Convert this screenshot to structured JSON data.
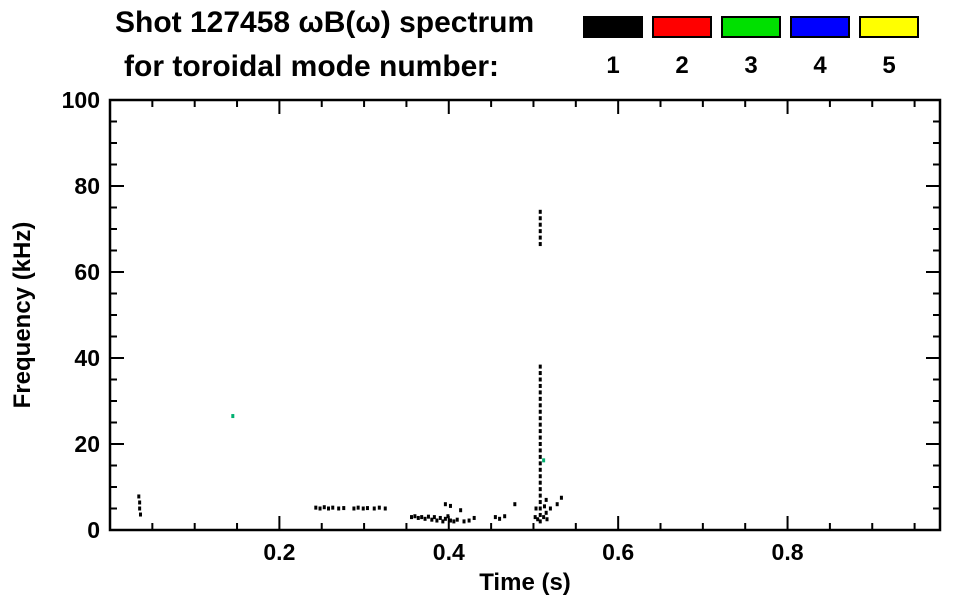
{
  "header": {
    "title": "Shot 127458 ωB(ω) spectrum",
    "subtitle": "for toroidal mode number:"
  },
  "chart_data": {
    "type": "scatter",
    "title": "Shot 127458 ωB(ω) spectrum",
    "subtitle": "for toroidal mode number:",
    "xlabel": "Time (s)",
    "ylabel": "Frequency (kHz)",
    "xlim": [
      0,
      0.98
    ],
    "ylim": [
      0,
      100
    ],
    "xticks": [
      0.2,
      0.4,
      0.6,
      0.8
    ],
    "xtick_labels": [
      "0.2",
      "0.4",
      "0.6",
      "0.8"
    ],
    "yticks": [
      0,
      20,
      40,
      60,
      80,
      100
    ],
    "ytick_labels": [
      "0",
      "20",
      "40",
      "60",
      "80",
      "100"
    ],
    "x_minor_step": 0.05,
    "y_minor_step": 5,
    "grid": false,
    "legend_position": "top-right",
    "legend": [
      {
        "label": "1",
        "color": "#000000"
      },
      {
        "label": "2",
        "color": "#ff0000"
      },
      {
        "label": "3",
        "color": "#00e000"
      },
      {
        "label": "4",
        "color": "#0000ff"
      },
      {
        "label": "5",
        "color": "#ffff00"
      }
    ],
    "series": [
      {
        "name": "n=1",
        "color": "#000000",
        "points": [
          [
            0.034,
            7.8
          ],
          [
            0.035,
            6.4
          ],
          [
            0.035,
            5.0
          ],
          [
            0.036,
            3.6
          ],
          [
            0.243,
            5.2
          ],
          [
            0.248,
            5.0
          ],
          [
            0.253,
            5.3
          ],
          [
            0.258,
            5.0
          ],
          [
            0.263,
            5.2
          ],
          [
            0.27,
            5.0
          ],
          [
            0.276,
            5.1
          ],
          [
            0.288,
            5.0
          ],
          [
            0.293,
            5.2
          ],
          [
            0.299,
            5.0
          ],
          [
            0.304,
            5.1
          ],
          [
            0.312,
            5.0
          ],
          [
            0.318,
            5.2
          ],
          [
            0.325,
            5.0
          ],
          [
            0.356,
            3.0
          ],
          [
            0.36,
            3.2
          ],
          [
            0.364,
            2.8
          ],
          [
            0.368,
            3.0
          ],
          [
            0.372,
            2.6
          ],
          [
            0.376,
            3.1
          ],
          [
            0.38,
            2.4
          ],
          [
            0.383,
            3.0
          ],
          [
            0.386,
            2.2
          ],
          [
            0.39,
            2.8
          ],
          [
            0.393,
            2.0
          ],
          [
            0.396,
            2.6
          ],
          [
            0.396,
            6.0
          ],
          [
            0.399,
            3.2
          ],
          [
            0.402,
            2.2
          ],
          [
            0.402,
            5.6
          ],
          [
            0.406,
            2.0
          ],
          [
            0.41,
            2.4
          ],
          [
            0.414,
            4.6
          ],
          [
            0.418,
            2.0
          ],
          [
            0.424,
            2.2
          ],
          [
            0.43,
            2.8
          ],
          [
            0.455,
            3.0
          ],
          [
            0.46,
            2.6
          ],
          [
            0.466,
            3.2
          ],
          [
            0.478,
            6.0
          ],
          [
            0.502,
            3.0
          ],
          [
            0.503,
            5.0
          ],
          [
            0.505,
            2.5
          ],
          [
            0.508,
            2.0
          ],
          [
            0.508,
            3.5
          ],
          [
            0.508,
            5.0
          ],
          [
            0.508,
            6.5
          ],
          [
            0.508,
            8.0
          ],
          [
            0.508,
            9.5
          ],
          [
            0.508,
            11.0
          ],
          [
            0.508,
            12.5
          ],
          [
            0.508,
            14.0
          ],
          [
            0.508,
            15.5
          ],
          [
            0.508,
            17.0
          ],
          [
            0.508,
            18.5
          ],
          [
            0.508,
            20.0
          ],
          [
            0.508,
            21.5
          ],
          [
            0.508,
            23.0
          ],
          [
            0.508,
            24.5
          ],
          [
            0.508,
            26.0
          ],
          [
            0.508,
            27.5
          ],
          [
            0.508,
            29.0
          ],
          [
            0.508,
            30.5
          ],
          [
            0.508,
            32.0
          ],
          [
            0.508,
            33.5
          ],
          [
            0.508,
            35.0
          ],
          [
            0.508,
            36.5
          ],
          [
            0.508,
            38.0
          ],
          [
            0.508,
            66.5
          ],
          [
            0.508,
            68.0
          ],
          [
            0.508,
            69.5
          ],
          [
            0.508,
            71.0
          ],
          [
            0.508,
            72.5
          ],
          [
            0.508,
            74.0
          ],
          [
            0.512,
            3.0
          ],
          [
            0.513,
            5.5
          ],
          [
            0.515,
            4.0
          ],
          [
            0.515,
            7.0
          ],
          [
            0.516,
            2.5
          ],
          [
            0.52,
            5.0
          ],
          [
            0.528,
            6.0
          ],
          [
            0.533,
            7.5
          ]
        ]
      },
      {
        "name": "n=3",
        "color": "#00b070",
        "points": [
          [
            0.145,
            26.5
          ],
          [
            0.512,
            16.2
          ]
        ]
      }
    ]
  }
}
